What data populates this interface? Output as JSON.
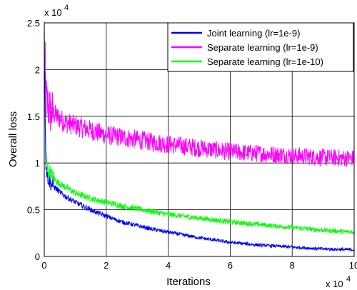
{
  "chart_data": {
    "type": "line",
    "xlabel": "Iterations",
    "ylabel": "Overall loss",
    "x_multiplier": "x 10",
    "x_multiplier_exp": "4",
    "y_multiplier": "x 10",
    "y_multiplier_exp": "4",
    "xlim": [
      0,
      10
    ],
    "ylim": [
      0,
      2.5
    ],
    "x_ticks": [
      "0",
      "2",
      "4",
      "6",
      "8",
      "10"
    ],
    "y_ticks": [
      "0",
      "0.5",
      "1",
      "1.5",
      "2",
      "2.5"
    ],
    "grid": true,
    "legend_position": "top-right",
    "series": [
      {
        "name": "Joint learning (lr=1e-9)",
        "color": "#0000ff",
        "noise": 0.04,
        "x": [
          0,
          0.05,
          0.1,
          0.2,
          0.4,
          0.6,
          0.8,
          1,
          1.5,
          2,
          2.5,
          3,
          3.5,
          4,
          5,
          6,
          7,
          8,
          9,
          10
        ],
        "y": [
          2.4,
          1.0,
          0.85,
          0.78,
          0.72,
          0.66,
          0.62,
          0.58,
          0.5,
          0.43,
          0.37,
          0.33,
          0.29,
          0.26,
          0.2,
          0.15,
          0.12,
          0.1,
          0.08,
          0.07
        ]
      },
      {
        "name": "Separate learning (lr=1e-9)",
        "color": "#ff00ff",
        "noise": 0.09,
        "x": [
          0,
          0.05,
          0.1,
          0.2,
          0.4,
          0.6,
          0.8,
          1,
          1.5,
          2,
          3,
          4,
          5,
          6,
          7,
          8,
          9,
          10
        ],
        "y": [
          2.4,
          1.7,
          1.62,
          1.55,
          1.5,
          1.45,
          1.42,
          1.4,
          1.35,
          1.3,
          1.25,
          1.2,
          1.16,
          1.12,
          1.1,
          1.08,
          1.06,
          1.05
        ]
      },
      {
        "name": "Separate learning (lr=1e-10)",
        "color": "#00ff00",
        "noise": 0.045,
        "x": [
          0,
          0.05,
          0.1,
          0.2,
          0.4,
          0.6,
          0.8,
          1,
          1.5,
          2,
          2.5,
          3,
          4,
          5,
          6,
          7,
          8,
          9,
          10
        ],
        "y": [
          2.4,
          1.1,
          0.95,
          0.88,
          0.8,
          0.76,
          0.72,
          0.68,
          0.62,
          0.58,
          0.54,
          0.51,
          0.45,
          0.41,
          0.37,
          0.34,
          0.31,
          0.28,
          0.26
        ]
      }
    ]
  }
}
